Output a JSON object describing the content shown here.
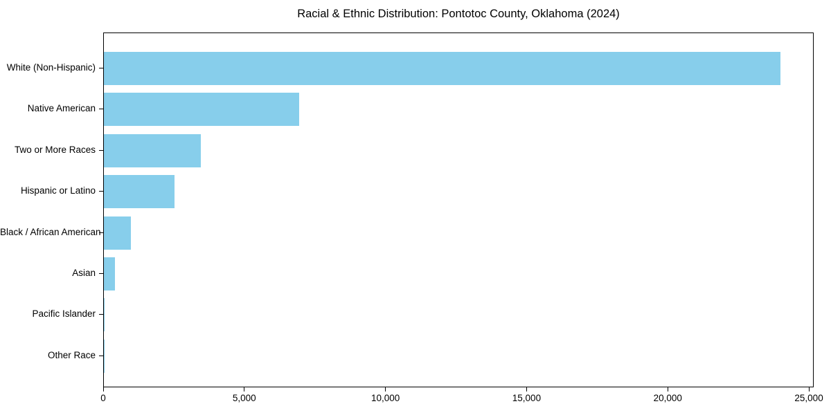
{
  "chart_data": {
    "type": "bar",
    "orientation": "horizontal",
    "title": "Racial & Ethnic Distribution: Pontotoc County, Oklahoma (2024)",
    "categories": [
      "White (Non-Hispanic)",
      "Native American",
      "Two or More Races",
      "Hispanic or Latino",
      "Black / African American",
      "Asian",
      "Pacific Islander",
      "Other Race"
    ],
    "values": [
      23970,
      6910,
      3430,
      2495,
      950,
      390,
      30,
      10
    ],
    "bar_color": "#87CEEB",
    "axis_color": "#000000",
    "text_color": "#000000",
    "xlabel": "",
    "ylabel": "",
    "xlim": [
      0,
      25170
    ],
    "x_ticks": [
      0,
      5000,
      10000,
      15000,
      20000,
      25000
    ],
    "x_tick_labels": [
      "0",
      "5,000",
      "10,000",
      "15,000",
      "20,000",
      "25,000"
    ],
    "grid": false,
    "legend": null,
    "value_labels_shown": false
  }
}
